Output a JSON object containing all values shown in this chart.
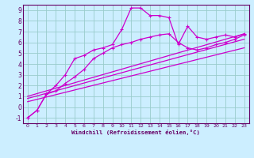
{
  "xlabel": "Windchill (Refroidissement éolien,°C)",
  "bg_color": "#cceeff",
  "line_color": "#cc00cc",
  "grid_color": "#99cccc",
  "axis_color": "#660066",
  "spine_color": "#660066",
  "xlim": [
    -0.5,
    23.5
  ],
  "ylim": [
    -1.5,
    9.5
  ],
  "xticks": [
    0,
    1,
    2,
    3,
    4,
    5,
    6,
    7,
    8,
    9,
    10,
    11,
    12,
    13,
    14,
    15,
    16,
    17,
    18,
    19,
    20,
    21,
    22,
    23
  ],
  "yticks": [
    -1,
    0,
    1,
    2,
    3,
    4,
    5,
    6,
    7,
    8,
    9
  ],
  "curve_main_x": [
    0,
    1,
    2,
    3,
    4,
    5,
    6,
    7,
    8,
    9,
    10,
    11,
    12,
    13,
    14,
    15,
    16,
    17,
    18,
    19,
    20,
    21,
    22,
    23
  ],
  "curve_main_y": [
    -1.0,
    -0.3,
    1.2,
    2.0,
    3.0,
    4.5,
    4.8,
    5.3,
    5.5,
    5.8,
    7.2,
    9.2,
    9.2,
    8.5,
    8.5,
    8.3,
    5.8,
    7.5,
    6.5,
    6.3,
    6.5,
    6.7,
    6.5,
    6.8
  ],
  "curve_lower_x": [
    0,
    1,
    2,
    3,
    4,
    5,
    6,
    7,
    8,
    9,
    10,
    11,
    12,
    13,
    14,
    15,
    16,
    17,
    18,
    19,
    20,
    21,
    22,
    23
  ],
  "curve_lower_y": [
    -1.0,
    -0.3,
    1.2,
    1.5,
    2.2,
    2.8,
    3.5,
    4.5,
    5.0,
    5.5,
    5.8,
    6.0,
    6.3,
    6.5,
    6.7,
    6.8,
    6.0,
    5.5,
    5.3,
    5.5,
    5.8,
    6.0,
    6.3,
    6.7
  ],
  "line1_x": [
    0,
    23
  ],
  "line1_y": [
    1.0,
    6.8
  ],
  "line2_x": [
    0,
    23
  ],
  "line2_y": [
    0.8,
    6.3
  ],
  "line3_x": [
    0,
    23
  ],
  "line3_y": [
    0.5,
    5.5
  ]
}
